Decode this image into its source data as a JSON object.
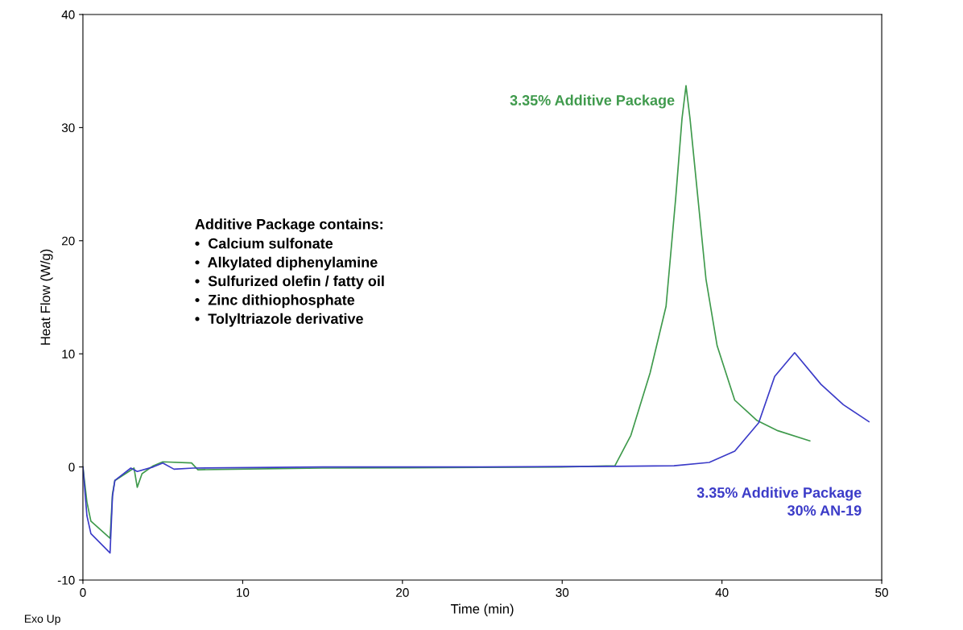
{
  "chart_data": {
    "type": "line",
    "xlabel": "Time (min)",
    "ylabel": "Heat Flow (W/g)",
    "xlim": [
      0,
      50
    ],
    "ylim": [
      -10,
      40
    ],
    "xticks": [
      0,
      10,
      20,
      30,
      40,
      50
    ],
    "yticks": [
      -10,
      0,
      10,
      20,
      30,
      40
    ],
    "grid": false,
    "legend": false,
    "marker": "none",
    "line_style": "solid",
    "annotations": [
      "Additive Package contains:",
      "•  Calcium sulfonate\n•  Alkylated diphenylamine\n•  Sulfurized olefin / fatty oil\n•  Zinc dithiophosphate\n•  Tolyltriazole derivative",
      "Exo Up"
    ],
    "series": [
      {
        "name": "3.35% Additive Package",
        "color": "#3f9a4c",
        "x": [
          0,
          0.25,
          0.5,
          1.7,
          1.85,
          2.0,
          3.2,
          3.4,
          3.7,
          4.4,
          5.0,
          6.8,
          7.2,
          9.5,
          15,
          25,
          30,
          33.3,
          34.3,
          35.5,
          36.5,
          37.1,
          37.5,
          37.75,
          38.0,
          38.5,
          39.0,
          39.7,
          40.8,
          42.2,
          43.5,
          45.5
        ],
        "values": [
          0,
          -3.1,
          -4.8,
          -6.3,
          -2.4,
          -1.2,
          -0.1,
          -1.8,
          -0.6,
          0.1,
          0.45,
          0.35,
          -0.25,
          -0.2,
          -0.1,
          -0.05,
          0,
          0.1,
          2.8,
          8.3,
          14.2,
          23.7,
          30.8,
          33.7,
          30.8,
          23.7,
          16.6,
          10.7,
          5.9,
          4.1,
          3.2,
          2.3
        ]
      },
      {
        "name": "3.35% Additive Package\n30% AN-19",
        "color": "#3b3bc8",
        "x": [
          0,
          0.25,
          0.5,
          1.7,
          1.85,
          2.0,
          3.0,
          3.4,
          4.4,
          5.0,
          5.7,
          6.9,
          15,
          25,
          33,
          37,
          39.2,
          40.8,
          42.3,
          43.3,
          44.55,
          46.2,
          47.6,
          49.2
        ],
        "values": [
          0,
          -4.3,
          -5.9,
          -7.6,
          -2.6,
          -1.2,
          -0.1,
          -0.4,
          0,
          0.35,
          -0.2,
          -0.1,
          0,
          0,
          0.05,
          0.1,
          0.4,
          1.4,
          3.9,
          8.0,
          10.1,
          7.3,
          5.5,
          4.0
        ]
      }
    ]
  }
}
